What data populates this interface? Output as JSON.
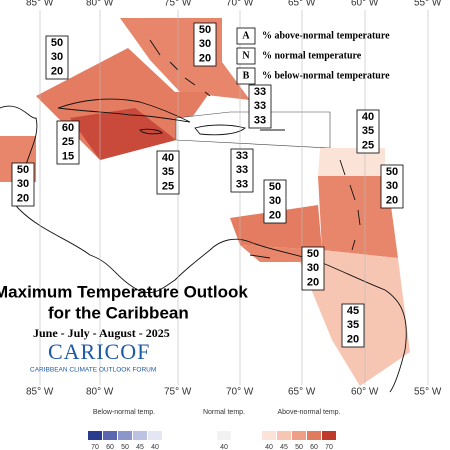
{
  "longitude_labels": [
    "85° W",
    "80° W",
    "75° W",
    "70° W",
    "65° W",
    "60° W",
    "55° W"
  ],
  "outlooks": [
    {
      "above": 50,
      "normal": 30,
      "below": 20
    },
    {
      "above": 50,
      "normal": 30,
      "below": 20
    },
    {
      "above": 33,
      "normal": 33,
      "below": 33
    },
    {
      "above": 40,
      "normal": 35,
      "below": 25
    },
    {
      "above": 60,
      "normal": 25,
      "below": 15
    },
    {
      "above": 40,
      "normal": 35,
      "below": 25
    },
    {
      "above": 33,
      "normal": 33,
      "below": 33
    },
    {
      "above": 50,
      "normal": 30,
      "below": 20
    },
    {
      "above": 50,
      "normal": 30,
      "below": 20
    },
    {
      "above": 50,
      "normal": 30,
      "below": 20
    },
    {
      "above": 50,
      "normal": 30,
      "below": 20
    },
    {
      "above": 45,
      "normal": 35,
      "below": 20
    }
  ],
  "legend": [
    {
      "key": "A",
      "text": "% above-normal temperature"
    },
    {
      "key": "N",
      "text": "% normal temperature"
    },
    {
      "key": "B",
      "text": "% below-normal temperature"
    }
  ],
  "title": {
    "line1": "Maximum Temperature Outlook",
    "line2": "for the Caribbean",
    "season": "June - July - August - 2025"
  },
  "logo": {
    "name": "CARICOF",
    "subtitle": "CARIBBEAN CLIMATE OUTLOOK FORUM"
  },
  "color_bar": {
    "below": {
      "label": "Below-normal temp.",
      "ticks": [
        70,
        60,
        50,
        45,
        40
      ]
    },
    "normal": {
      "label": "Normal temp.",
      "ticks": [
        40
      ]
    },
    "above": {
      "label": "Above-normal temp.",
      "ticks": [
        40,
        45,
        50,
        60,
        70
      ]
    }
  }
}
